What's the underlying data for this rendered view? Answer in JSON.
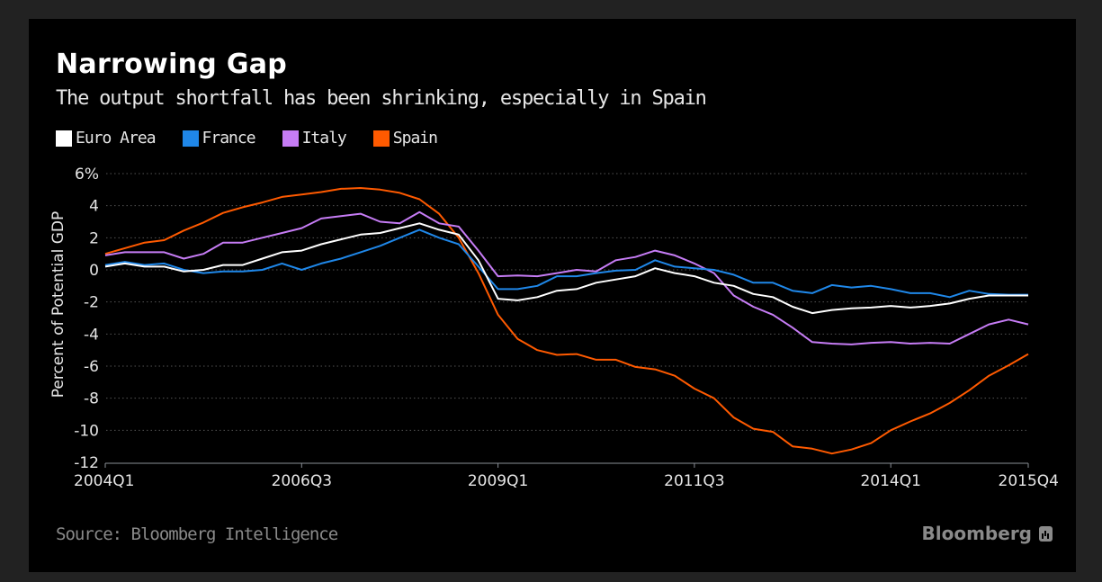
{
  "frame": {
    "background": "#222222",
    "panel": "#000000"
  },
  "header": {
    "title": "Narrowing Gap",
    "subtitle": "The output shortfall has been shrinking, especially in Spain"
  },
  "footer": {
    "source": "Source: Bloomberg Intelligence",
    "brand": "Bloomberg",
    "brand_icon": "bar-chart-badge-icon"
  },
  "chart_data": {
    "type": "line",
    "title": "Narrowing Gap",
    "subtitle": "The output shortfall has been shrinking, especially in Spain",
    "xlabel": "",
    "ylabel": "Percent of Potential GDP",
    "ylim": [
      -12,
      6
    ],
    "yticks": [
      6,
      4,
      2,
      0,
      -2,
      -4,
      -6,
      -8,
      -10,
      -12
    ],
    "ytick_labels": [
      "6%",
      "4",
      "2",
      "0",
      "-2",
      "-4",
      "-6",
      "-8",
      "-10",
      "-12"
    ],
    "xtick_labels": [
      "2004Q1",
      "2006Q3",
      "2009Q1",
      "2011Q3",
      "2014Q1",
      "2015Q4"
    ],
    "xtick_indices": [
      0,
      10,
      20,
      30,
      40,
      47
    ],
    "grid": "horizontal-dotted",
    "legend": "top-left",
    "x": [
      "2004Q1",
      "2004Q2",
      "2004Q3",
      "2004Q4",
      "2005Q1",
      "2005Q2",
      "2005Q3",
      "2005Q4",
      "2006Q1",
      "2006Q2",
      "2006Q3",
      "2006Q4",
      "2007Q1",
      "2007Q2",
      "2007Q3",
      "2007Q4",
      "2008Q1",
      "2008Q2",
      "2008Q3",
      "2008Q4",
      "2009Q1",
      "2009Q2",
      "2009Q3",
      "2009Q4",
      "2010Q1",
      "2010Q2",
      "2010Q3",
      "2010Q4",
      "2011Q1",
      "2011Q2",
      "2011Q3",
      "2011Q4",
      "2012Q1",
      "2012Q2",
      "2012Q3",
      "2012Q4",
      "2013Q1",
      "2013Q2",
      "2013Q3",
      "2013Q4",
      "2014Q1",
      "2014Q2",
      "2014Q3",
      "2014Q4",
      "2015Q1",
      "2015Q2",
      "2015Q3",
      "2015Q4"
    ],
    "series": [
      {
        "name": "Euro Area",
        "color": "#ffffff",
        "values": [
          0.2,
          0.4,
          0.2,
          0.2,
          -0.1,
          0.0,
          0.3,
          0.3,
          0.7,
          1.1,
          1.2,
          1.6,
          1.9,
          2.2,
          2.3,
          2.6,
          2.9,
          2.5,
          2.2,
          0.6,
          -1.8,
          -1.9,
          -1.7,
          -1.3,
          -1.2,
          -0.8,
          -0.6,
          -0.4,
          0.1,
          -0.2,
          -0.4,
          -0.8,
          -1.0,
          -1.5,
          -1.7,
          -2.3,
          -2.7,
          -2.5,
          -2.4,
          -2.35,
          -2.25,
          -2.35,
          -2.25,
          -2.1,
          -1.8,
          -1.6,
          -1.6,
          -1.6
        ]
      },
      {
        "name": "France",
        "color": "#1f87e8",
        "values": [
          0.3,
          0.5,
          0.3,
          0.4,
          0.0,
          -0.2,
          -0.1,
          -0.1,
          0.0,
          0.4,
          0.0,
          0.4,
          0.7,
          1.1,
          1.5,
          2.0,
          2.5,
          2.0,
          1.6,
          0.2,
          -1.2,
          -1.2,
          -1.0,
          -0.4,
          -0.4,
          -0.2,
          -0.05,
          0.0,
          0.6,
          0.2,
          0.1,
          0.0,
          -0.3,
          -0.8,
          -0.8,
          -1.3,
          -1.45,
          -0.95,
          -1.1,
          -1.0,
          -1.2,
          -1.45,
          -1.45,
          -1.7,
          -1.3,
          -1.5,
          -1.55,
          -1.55
        ]
      },
      {
        "name": "Italy",
        "color": "#c67cf5",
        "values": [
          0.9,
          1.1,
          1.1,
          1.1,
          0.7,
          1.0,
          1.7,
          1.7,
          2.0,
          2.3,
          2.6,
          3.2,
          3.35,
          3.5,
          3.0,
          2.9,
          3.6,
          2.9,
          2.7,
          1.2,
          -0.4,
          -0.35,
          -0.4,
          -0.2,
          0.0,
          -0.1,
          0.6,
          0.8,
          1.2,
          0.9,
          0.4,
          -0.2,
          -1.6,
          -2.3,
          -2.8,
          -3.6,
          -4.5,
          -4.6,
          -4.65,
          -4.55,
          -4.5,
          -4.6,
          -4.55,
          -4.6,
          -4.0,
          -3.4,
          -3.1,
          -3.4
        ]
      },
      {
        "name": "Spain",
        "color": "#ff5a00",
        "values": [
          1.0,
          1.35,
          1.7,
          1.85,
          2.45,
          2.95,
          3.55,
          3.9,
          4.2,
          4.55,
          4.7,
          4.85,
          5.05,
          5.1,
          5.0,
          4.8,
          4.4,
          3.5,
          2.0,
          -0.2,
          -2.8,
          -4.3,
          -5.0,
          -5.3,
          -5.25,
          -5.6,
          -5.6,
          -6.05,
          -6.2,
          -6.6,
          -7.4,
          -8.0,
          -9.2,
          -9.9,
          -10.1,
          -11.0,
          -11.15,
          -11.45,
          -11.2,
          -10.8,
          -10.0,
          -9.45,
          -8.95,
          -8.3,
          -7.5,
          -6.6,
          -5.95,
          -5.25
        ]
      }
    ]
  }
}
